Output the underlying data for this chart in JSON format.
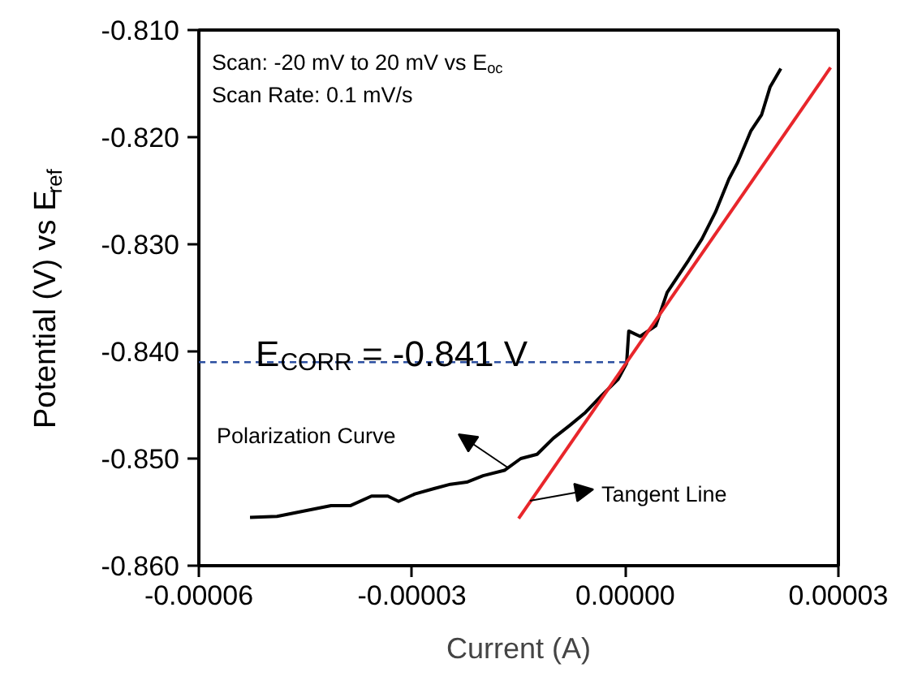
{
  "chart_data": {
    "type": "line",
    "xlabel": "Current (A)",
    "ylabel": "Potential (V) vs E$_{ref}$",
    "xlim": [
      -6e-05,
      3e-05
    ],
    "ylim": [
      -0.86,
      -0.81
    ],
    "xticks": [
      {
        "value": -6e-05,
        "label": "-0.00006"
      },
      {
        "value": -3e-05,
        "label": "-0.00003"
      },
      {
        "value": 0,
        "label": "0.00000"
      },
      {
        "value": 3e-05,
        "label": "0.00003"
      }
    ],
    "yticks": [
      {
        "value": -0.86,
        "label": "-0.860"
      },
      {
        "value": -0.85,
        "label": "-0.850"
      },
      {
        "value": -0.84,
        "label": "-0.840"
      },
      {
        "value": -0.83,
        "label": "-0.830"
      },
      {
        "value": -0.82,
        "label": "-0.820"
      },
      {
        "value": -0.81,
        "label": "-0.810"
      }
    ],
    "grid": false,
    "marker": "none",
    "series": [
      {
        "color": "#000000",
        "line_style": "solid",
        "x": [
          -5.28e-05,
          -4.9e-05,
          -4.14e-05,
          -3.87e-05,
          -3.57e-05,
          -3.34e-05,
          -3.19e-05,
          -2.96e-05,
          -2.69e-05,
          -2.46e-05,
          -2.23e-05,
          -2e-05,
          -1.7e-05,
          -1.47e-05,
          -1.24e-05,
          -1.01e-05,
          -7.8e-06,
          -5.6e-06,
          -3.3e-06,
          -1e-06,
          2e-07,
          5e-07,
          2.1e-06,
          4.3e-06,
          5.9e-06,
          7.4e-06,
          8.9e-06,
          1.08e-05,
          1.27e-05,
          1.46e-05,
          1.58e-05,
          1.77e-05,
          1.92e-05,
          2.04e-05,
          2.19e-05
        ],
        "values": [
          -0.8555,
          -0.8554,
          -0.8544,
          -0.8544,
          -0.8535,
          -0.8535,
          -0.854,
          -0.8533,
          -0.8528,
          -0.8524,
          -0.8522,
          -0.8516,
          -0.8511,
          -0.85,
          -0.8496,
          -0.8481,
          -0.8469,
          -0.8457,
          -0.8441,
          -0.8426,
          -0.8411,
          -0.8381,
          -0.8386,
          -0.8376,
          -0.8345,
          -0.833,
          -0.8315,
          -0.8295,
          -0.827,
          -0.8239,
          -0.8224,
          -0.8194,
          -0.8179,
          -0.8153,
          -0.8136
        ]
      },
      {
        "color": "#e8262b",
        "line_style": "solid",
        "x": [
          -1.5e-05,
          2.89e-05
        ],
        "values": [
          -0.8556,
          -0.8135
        ]
      },
      {
        "color": "#2b4ea0",
        "line_style": "dashed",
        "x": [
          -6e-05,
          0
        ],
        "values": [
          -0.841,
          -0.841
        ]
      }
    ],
    "annotations": [
      "Scan: -20 mV to 20 mV vs E$_{oc}$",
      "Scan Rate: 0.1 mV/s",
      {
        "text": "E$_{CORR}$ = -0.841 V",
        "x": -5.2e-05,
        "y": -0.841
      },
      "Polarization Curve",
      "Tangent Line"
    ]
  }
}
